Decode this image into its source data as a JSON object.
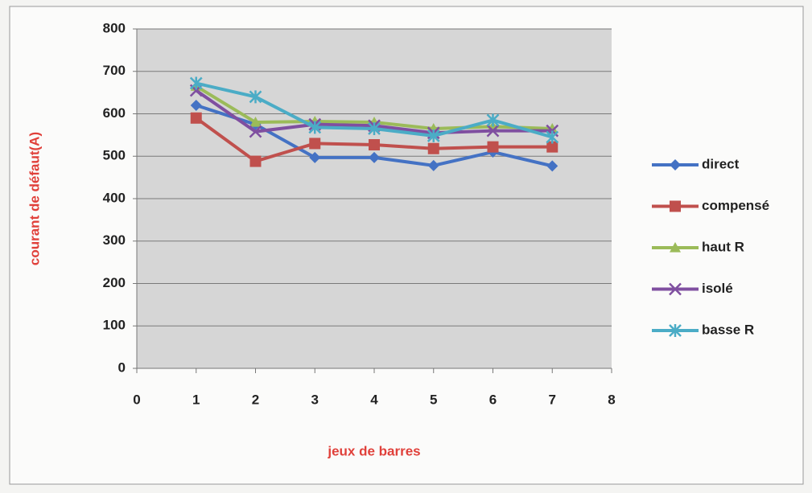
{
  "chart_data": {
    "type": "line",
    "x_label": "jeux de barres",
    "y_label": "courant de défaut(A)",
    "x": [
      1,
      2,
      3,
      4,
      5,
      6,
      7
    ],
    "xlim": [
      0,
      8
    ],
    "xticks": [
      0,
      1,
      2,
      3,
      4,
      5,
      6,
      7,
      8
    ],
    "ylim": [
      0,
      800
    ],
    "yticks": [
      0,
      100,
      200,
      300,
      400,
      500,
      600,
      700,
      800
    ],
    "grid": true,
    "legend": "right",
    "series": [
      {
        "name": "direct",
        "color": "#4472c4",
        "marker": "diamond",
        "values": [
          620,
          575,
          497,
          497,
          478,
          510,
          477
        ]
      },
      {
        "name": "compensé",
        "color": "#c0504d",
        "marker": "square",
        "values": [
          590,
          488,
          530,
          527,
          518,
          522,
          522
        ]
      },
      {
        "name": "haut R",
        "color": "#9bbb59",
        "marker": "triangle",
        "values": [
          665,
          580,
          582,
          580,
          565,
          570,
          565
        ]
      },
      {
        "name": "isolé",
        "color": "#7f4fa0",
        "marker": "x",
        "values": [
          655,
          558,
          575,
          572,
          555,
          560,
          560
        ]
      },
      {
        "name": "basse R",
        "color": "#4bacc6",
        "marker": "star",
        "values": [
          672,
          640,
          568,
          565,
          548,
          585,
          545
        ]
      }
    ]
  }
}
